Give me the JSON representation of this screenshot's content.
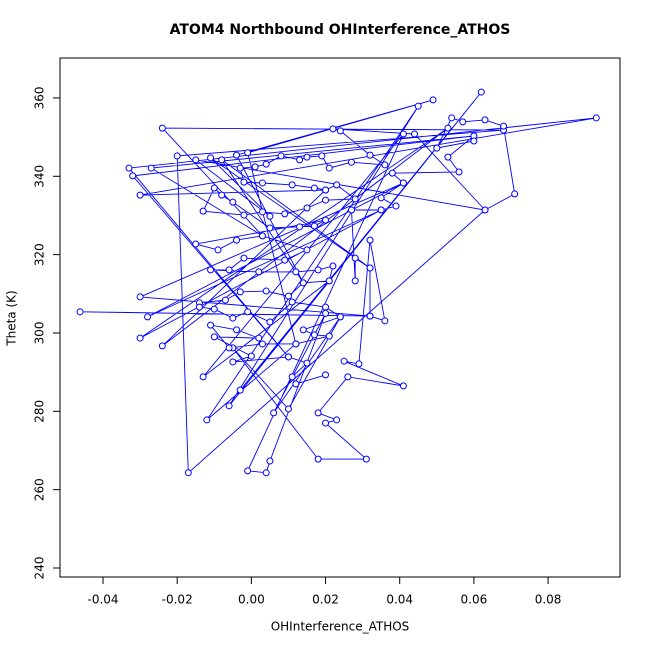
{
  "chart_data": {
    "type": "scatter-line",
    "title": "ATOM4 Northbound OHInterference_ATHOS",
    "x_label": "OHInterference_ATHOS",
    "y_label": "Theta (K)",
    "color": "#0000ff",
    "xlim": [
      -0.0516,
      0.0994
    ],
    "ylim": [
      237.7,
      370.2
    ],
    "xticks": [
      -0.04,
      -0.02,
      {
        "value": 0,
        "label": "0.00"
      },
      0.02,
      0.04,
      0.06,
      0.08
    ],
    "yticks": [
      240,
      260,
      280,
      300,
      320,
      340,
      360
    ],
    "x": [
      -0.0462,
      0.032,
      -0.03,
      0.041,
      -0.028,
      0.035,
      -0.03,
      0.053,
      -0.024,
      0.02,
      -0.03,
      0.093,
      -0.033,
      0.01,
      -0.032,
      0.06,
      -0.027,
      0.003,
      -0.024,
      0.068,
      -0.02,
      -0.017,
      0.063,
      -0.015,
      0.005,
      -0.011,
      0.032,
      -0.008,
      0.014,
      -0.004,
      0.049,
      -0.001,
      0.012,
      -0.012,
      0.045,
      -0.006,
      0.062,
      -0.003,
      0.021,
      -0.013,
      0.041,
      -0.001,
      0.004,
      0.005,
      0.02,
      0.006,
      0.024,
      0.01,
      -0.005,
      0.018,
      0.031,
      0.02,
      0.023,
      0.018,
      0.026,
      0.041,
      0.025,
      0.029,
      0.032,
      0.036,
      0.032,
      0.032,
      0.028,
      0.028,
      0.027,
      0.035,
      0.039,
      0.035,
      0.041,
      0.038,
      0.056,
      0.053,
      0.06,
      0.06,
      0.05,
      0.054,
      0.057,
      0.063,
      0.068,
      0.071,
      0.063,
      0.044,
      0.022,
      0.024,
      0.032,
      0.036,
      0.027,
      0.021,
      0.019,
      0.015,
      0.013,
      0.008,
      0.004,
      0.001,
      -0.003,
      -0.002,
      0.003,
      0.011,
      0.017,
      0.02,
      0.023,
      0.028,
      0.02,
      0.015,
      0.009,
      0.003,
      -0.002,
      -0.013,
      -0.01,
      -0.008,
      -0.005,
      0.005,
      0.013,
      0.017,
      0.02,
      -0.015,
      -0.009,
      -0.004,
      0.003,
      0.015,
      0.009,
      -0.002,
      -0.006,
      -0.011,
      0.002,
      0.012,
      0.018,
      0.022,
      0.021,
      0.014,
      0.01,
      0.004,
      -0.003,
      -0.007,
      -0.014,
      -0.014,
      -0.01,
      -0.005,
      -0.001,
      0.005,
      0.011,
      0.02,
      0.024,
      0.014,
      0.017,
      0.021,
      0.012,
      0.003,
      -0.006,
      -0.011,
      -0.004,
      0.002,
      -0.01,
      0.0,
      -0.005,
      0.01,
      0.015,
      0.011,
      0.012,
      0.02
    ],
    "y": [
      305.4,
      304.3,
      309.2,
      338.3,
      304.1,
      331.4,
      298.7,
      352.3,
      296.7,
      336.5,
      335.2,
      354.9,
      342.1,
      293.9,
      340.1,
      350.3,
      342.1,
      324.8,
      352.3,
      351.8,
      345.2,
      264.3,
      331.4,
      344.2,
      329.8,
      344.7,
      316.6,
      344.2,
      312.8,
      345.4,
      359.5,
      346.0,
      297.2,
      277.8,
      357.9,
      281.4,
      361.5,
      285.4,
      313.3,
      288.8,
      350.8,
      264.8,
      264.3,
      267.3,
      305.0,
      279.6,
      304.1,
      280.6,
      296.2,
      267.8,
      267.8,
      277.0,
      277.8,
      279.6,
      288.8,
      286.5,
      292.8,
      292.1,
      323.7,
      303.1,
      304.3,
      316.6,
      319.1,
      313.3,
      331.4,
      331.4,
      332.4,
      334.5,
      338.3,
      340.8,
      341.1,
      344.9,
      350.3,
      349.0,
      347.2,
      354.9,
      353.9,
      354.4,
      352.8,
      335.5,
      331.4,
      350.8,
      352.1,
      351.6,
      345.4,
      342.9,
      343.6,
      342.1,
      345.2,
      344.9,
      344.2,
      345.2,
      343.1,
      342.4,
      342.1,
      338.5,
      338.3,
      337.8,
      337.0,
      336.5,
      337.8,
      334.2,
      333.9,
      331.9,
      330.4,
      330.9,
      330.1,
      331.1,
      337.0,
      335.2,
      333.4,
      326.8,
      327.1,
      327.3,
      328.8,
      322.7,
      321.2,
      323.7,
      324.8,
      321.2,
      318.6,
      319.1,
      316.1,
      316.1,
      315.6,
      315.6,
      316.1,
      317.1,
      313.3,
      312.8,
      309.4,
      310.7,
      310.5,
      308.4,
      307.7,
      306.6,
      306.1,
      303.8,
      305.4,
      302.8,
      307.9,
      306.6,
      304.1,
      300.8,
      299.5,
      299.2,
      297.2,
      297.2,
      296.2,
      302.0,
      300.8,
      298.7,
      299.0,
      294.1,
      292.6,
      293.9,
      292.3,
      288.8,
      287.0,
      289.3
    ]
  }
}
